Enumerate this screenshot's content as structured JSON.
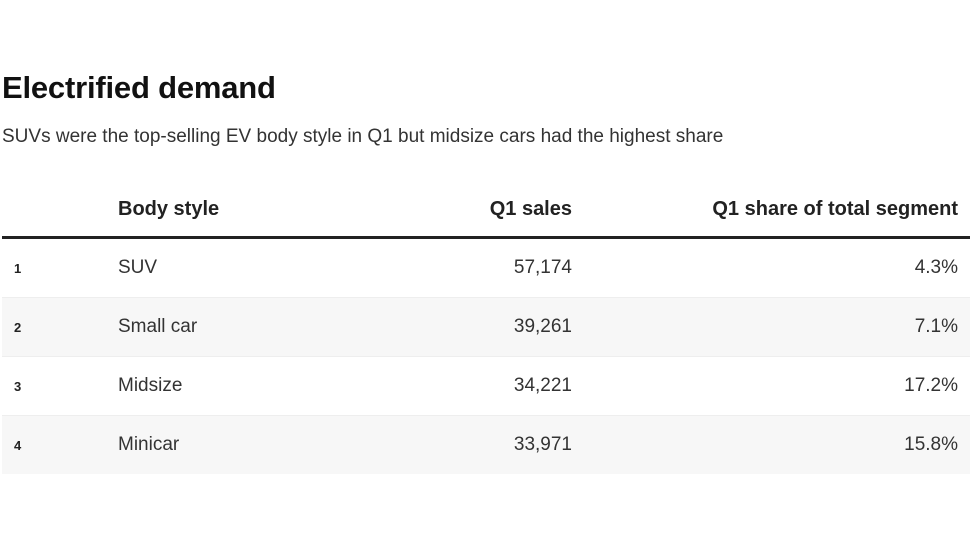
{
  "chart_data": {
    "type": "table",
    "title": "Electrified demand",
    "subtitle": "SUVs were the top-selling EV body style in Q1 but midsize cars had the highest share",
    "columns": [
      "",
      "Body style",
      "Q1 sales",
      "Q1 share of total segment"
    ],
    "rows": [
      {
        "rank": "1",
        "body_style": "SUV",
        "q1_sales": "57,174",
        "q1_share": "4.3%"
      },
      {
        "rank": "2",
        "body_style": "Small car",
        "q1_sales": "39,261",
        "q1_share": "7.1%"
      },
      {
        "rank": "3",
        "body_style": "Midsize",
        "q1_sales": "34,221",
        "q1_share": "17.2%"
      },
      {
        "rank": "4",
        "body_style": "Minicar",
        "q1_sales": "33,971",
        "q1_share": "15.8%"
      }
    ]
  }
}
